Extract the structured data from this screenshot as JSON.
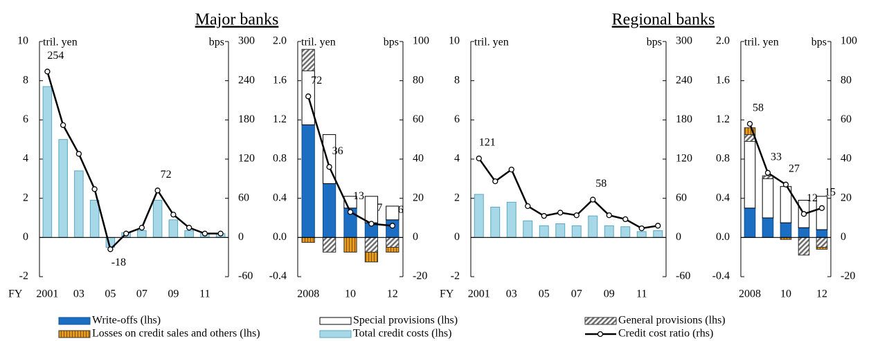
{
  "titles": [
    "Major banks",
    "Regional banks"
  ],
  "chart_data": [
    {
      "type": "bar",
      "ylabel": "tril. yen",
      "y2label": "bps",
      "xlabel": "FY",
      "categories": [
        "2001",
        null,
        "03",
        null,
        "05",
        null,
        "07",
        null,
        "09",
        null,
        "11",
        null
      ],
      "ylim": [
        -2,
        10
      ],
      "yticks": [
        -2,
        0,
        2,
        4,
        6,
        8,
        10
      ],
      "y2lim": [
        -60,
        300
      ],
      "y2ticks": [
        -60,
        0,
        60,
        120,
        180,
        240,
        300
      ],
      "series": [
        {
          "name": "Total credit costs (lhs)",
          "type": "bar",
          "color": "#a6d8e8",
          "values": [
            7.7,
            5.0,
            3.4,
            1.9,
            -0.5,
            0.25,
            0.35,
            1.9,
            0.9,
            0.35,
            0.2,
            0.2
          ]
        },
        {
          "name": "Credit cost ratio (rhs)",
          "type": "line",
          "axis": "y2",
          "color": "#000000",
          "values": [
            254,
            172,
            128,
            74,
            -18,
            6,
            15,
            72,
            35,
            15,
            6,
            6
          ],
          "value_labels": [
            "254",
            null,
            null,
            null,
            "-18",
            null,
            null,
            "72",
            null,
            null,
            null,
            null
          ]
        }
      ]
    },
    {
      "type": "stacked_bar",
      "ylabel": "tril. yen",
      "y2label": "bps",
      "categories": [
        "2008",
        null,
        "10",
        null,
        "12"
      ],
      "ylim": [
        -0.4,
        2.0
      ],
      "yticks": [
        -0.4,
        {
          "value": 0,
          "label": "0.0"
        },
        0.4,
        0.8,
        1.2,
        1.6,
        {
          "value": 2,
          "label": "2.0"
        }
      ],
      "y2lim": [
        -20,
        100
      ],
      "y2ticks": [
        -20,
        0,
        20,
        40,
        60,
        80,
        100
      ],
      "series": [
        {
          "name": "Write-offs (lhs)",
          "type": "bar",
          "color": "#1b6ec2",
          "values": [
            1.15,
            0.55,
            0.3,
            0.15,
            0.18
          ]
        },
        {
          "name": "Special provisions (lhs)",
          "type": "bar",
          "color": "#ffffff",
          "values": [
            0.55,
            0.5,
            0.12,
            0.27,
            0.14
          ]
        },
        {
          "name": "General provisions (lhs)",
          "type": "bar",
          "color": "#6e6e6e",
          "pattern": "hatch",
          "values": [
            0.22,
            -0.15,
            0,
            -0.15,
            -0.1
          ]
        },
        {
          "name": "Losses on credit sales and others (lhs)",
          "type": "bar",
          "color": "#e39b1b",
          "pattern": "stripes",
          "values": [
            -0.05,
            0,
            -0.15,
            -0.1,
            -0.05
          ]
        },
        {
          "name": "Credit cost ratio (rhs)",
          "type": "line",
          "axis": "y2",
          "color": "#000000",
          "values": [
            72,
            36,
            13,
            7,
            6
          ]
        }
      ]
    },
    {
      "type": "bar",
      "ylabel": "tril. yen",
      "y2label": "bps",
      "xlabel": "FY",
      "categories": [
        "2001",
        null,
        "03",
        null,
        "05",
        null,
        "07",
        null,
        "09",
        null,
        "11",
        null
      ],
      "ylim": [
        -2,
        10
      ],
      "yticks": [
        -2,
        0,
        2,
        4,
        6,
        8,
        10
      ],
      "y2lim": [
        -60,
        300
      ],
      "y2ticks": [
        -60,
        0,
        60,
        120,
        180,
        240,
        300
      ],
      "series": [
        {
          "name": "Total credit costs (lhs)",
          "type": "bar",
          "color": "#a6d8e8",
          "values": [
            2.2,
            1.55,
            1.8,
            0.85,
            0.6,
            0.7,
            0.6,
            1.1,
            0.6,
            0.55,
            0.3,
            0.35
          ]
        },
        {
          "name": "Credit cost ratio (rhs)",
          "type": "line",
          "axis": "y2",
          "color": "#000000",
          "values": [
            121,
            86,
            104,
            48,
            33,
            38,
            34,
            58,
            34,
            28,
            14,
            18
          ],
          "value_labels": [
            "121",
            null,
            null,
            null,
            null,
            null,
            null,
            "58",
            null,
            null,
            null,
            null
          ]
        }
      ]
    },
    {
      "type": "stacked_bar",
      "ylabel": "tril. yen",
      "y2label": "bps",
      "categories": [
        "2008",
        null,
        "10",
        null,
        "12"
      ],
      "ylim": [
        -0.4,
        2.0
      ],
      "yticks": [
        -0.4,
        {
          "value": 0,
          "label": "0.0"
        },
        0.4,
        0.8,
        1.2,
        1.6,
        {
          "value": 2,
          "label": "2.0"
        }
      ],
      "y2lim": [
        -20,
        100
      ],
      "y2ticks": [
        -20,
        0,
        20,
        40,
        60,
        80,
        100
      ],
      "series": [
        {
          "name": "Write-offs (lhs)",
          "type": "bar",
          "color": "#1b6ec2",
          "values": [
            0.3,
            0.2,
            0.15,
            0.1,
            0.08
          ]
        },
        {
          "name": "Special provisions (lhs)",
          "type": "bar",
          "color": "#ffffff",
          "values": [
            0.68,
            0.4,
            0.37,
            0.28,
            0.34
          ]
        },
        {
          "name": "General provisions (lhs)",
          "type": "bar",
          "color": "#6e6e6e",
          "pattern": "hatch",
          "values": [
            0.07,
            0.03,
            0,
            -0.18,
            -0.1
          ]
        },
        {
          "name": "Losses on credit sales and others (lhs)",
          "type": "bar",
          "color": "#e39b1b",
          "pattern": "stripes",
          "values": [
            0.07,
            0,
            -0.02,
            0,
            -0.02
          ]
        },
        {
          "name": "Credit cost ratio (rhs)",
          "type": "line",
          "axis": "y2",
          "color": "#000000",
          "values": [
            58,
            33,
            27,
            12,
            15
          ]
        }
      ]
    }
  ]
}
